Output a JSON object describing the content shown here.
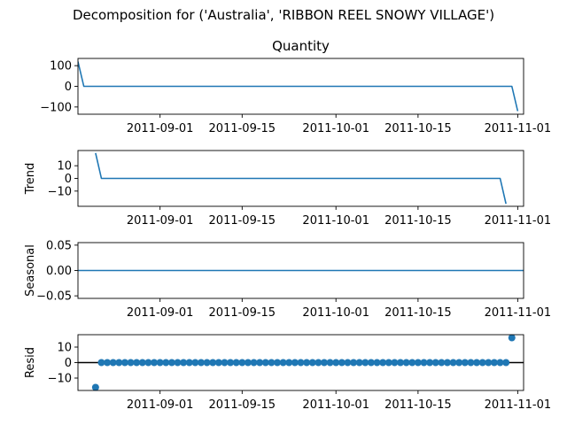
{
  "figure": {
    "suptitle": "Decomposition for ('Australia', 'RIBBON REEL SNOWY VILLAGE')"
  },
  "colors": {
    "series": "#1f77b4",
    "axis": "#000000",
    "zero_line": "#000000",
    "background": "#ffffff"
  },
  "chart_data": [
    {
      "type": "line",
      "title": "Quantity",
      "ylabel": "",
      "x_start": "2011-08-18",
      "x_end": "2011-11-02",
      "xlim": [
        "2011-08-18",
        "2011-11-02"
      ],
      "ylim": [
        -135,
        135
      ],
      "yticks": [
        -100,
        0,
        100
      ],
      "ytick_labels": [
        "−100",
        "0",
        "100"
      ],
      "xticks": [
        "2011-09-01",
        "2011-09-15",
        "2011-10-01",
        "2011-10-15",
        "2011-11-01"
      ],
      "series": [
        {
          "points": [
            [
              "2011-08-18",
              120
            ],
            [
              "2011-08-19",
              0
            ],
            [
              "2011-10-31",
              0
            ],
            [
              "2011-11-01",
              -120
            ]
          ]
        }
      ]
    },
    {
      "type": "line",
      "title": "",
      "ylabel": "Trend",
      "xlim": [
        "2011-08-18",
        "2011-11-02"
      ],
      "ylim": [
        -22,
        22
      ],
      "yticks": [
        -10,
        0,
        10
      ],
      "ytick_labels": [
        "−10",
        "0",
        "10"
      ],
      "xticks": [
        "2011-09-01",
        "2011-09-15",
        "2011-10-01",
        "2011-10-15",
        "2011-11-01"
      ],
      "series": [
        {
          "points": [
            [
              "2011-08-21",
              20
            ],
            [
              "2011-08-22",
              0
            ],
            [
              "2011-10-29",
              0
            ],
            [
              "2011-10-30",
              -20
            ]
          ]
        }
      ]
    },
    {
      "type": "line",
      "title": "",
      "ylabel": "Seasonal",
      "xlim": [
        "2011-08-18",
        "2011-11-02"
      ],
      "ylim": [
        -0.055,
        0.055
      ],
      "yticks": [
        -0.05,
        0.0,
        0.05
      ],
      "ytick_labels": [
        "−0.05",
        "0.00",
        "0.05"
      ],
      "xticks": [
        "2011-09-01",
        "2011-09-15",
        "2011-10-01",
        "2011-10-15",
        "2011-11-01"
      ],
      "series": [
        {
          "points": [
            [
              "2011-08-18",
              0
            ],
            [
              "2011-11-02",
              0
            ]
          ]
        }
      ]
    },
    {
      "type": "scatter",
      "title": "",
      "ylabel": "Resid",
      "xlim": [
        "2011-08-18",
        "2011-11-02"
      ],
      "ylim": [
        -18,
        18
      ],
      "yticks": [
        -10,
        0,
        10
      ],
      "ytick_labels": [
        "−10",
        "0",
        "10"
      ],
      "xticks": [
        "2011-09-01",
        "2011-09-15",
        "2011-10-01",
        "2011-10-15",
        "2011-11-01"
      ],
      "zero_line": true,
      "first": {
        "date": "2011-08-21",
        "value": -16
      },
      "last": {
        "date": "2011-10-31",
        "value": 16
      },
      "middle_start": "2011-08-22",
      "middle_end": "2011-10-30",
      "middle_value": 0
    }
  ]
}
